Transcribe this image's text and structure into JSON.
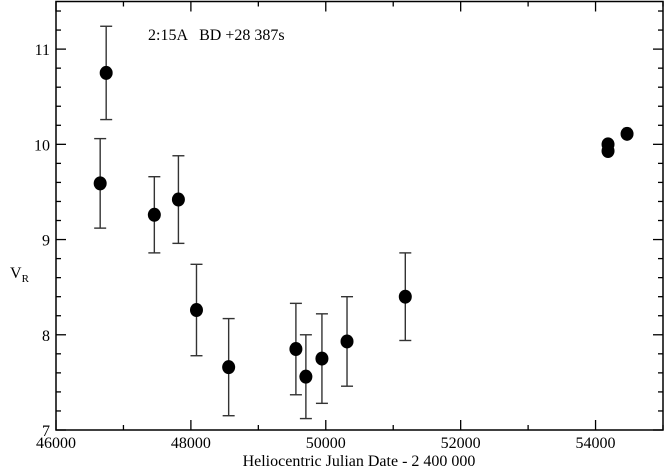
{
  "chart_data": {
    "type": "scatter",
    "annotation": "2:15A   BD +28 387s",
    "xlabel": "Heliocentric Julian Date - 2 400 000",
    "ylabel_main": "V",
    "ylabel_sub": "R",
    "xlim": [
      46000,
      55000
    ],
    "ylim": [
      7,
      11.5
    ],
    "xticks": [
      46000,
      48000,
      50000,
      52000,
      54000
    ],
    "xtick_labels": [
      "46000",
      "48000",
      "50000",
      "52000",
      "54000"
    ],
    "yticks": [
      7,
      8,
      9,
      10,
      11
    ],
    "ytick_labels": [
      "7",
      "8",
      "9",
      "10",
      "11"
    ],
    "x_minor_step": 1000,
    "y_minor_step": 0.2,
    "grid": false,
    "marker_color": "#000000",
    "points": [
      {
        "x": 46655,
        "y": 9.59,
        "err": 0.47
      },
      {
        "x": 46744,
        "y": 10.75,
        "err": 0.49
      },
      {
        "x": 47458,
        "y": 9.26,
        "err": 0.4
      },
      {
        "x": 47815,
        "y": 9.42,
        "err": 0.46
      },
      {
        "x": 48083,
        "y": 8.26,
        "err": 0.48
      },
      {
        "x": 48560,
        "y": 7.66,
        "err": 0.51
      },
      {
        "x": 49557,
        "y": 7.85,
        "err": 0.48
      },
      {
        "x": 49705,
        "y": 7.56,
        "err": 0.44
      },
      {
        "x": 49943,
        "y": 7.75,
        "err": 0.47
      },
      {
        "x": 50315,
        "y": 7.93,
        "err": 0.47
      },
      {
        "x": 51179,
        "y": 8.4,
        "err": 0.46
      },
      {
        "x": 54185,
        "y": 10.0,
        "err": 0
      },
      {
        "x": 54185,
        "y": 9.93,
        "err": 0
      },
      {
        "x": 54467,
        "y": 10.11,
        "err": 0
      }
    ]
  }
}
